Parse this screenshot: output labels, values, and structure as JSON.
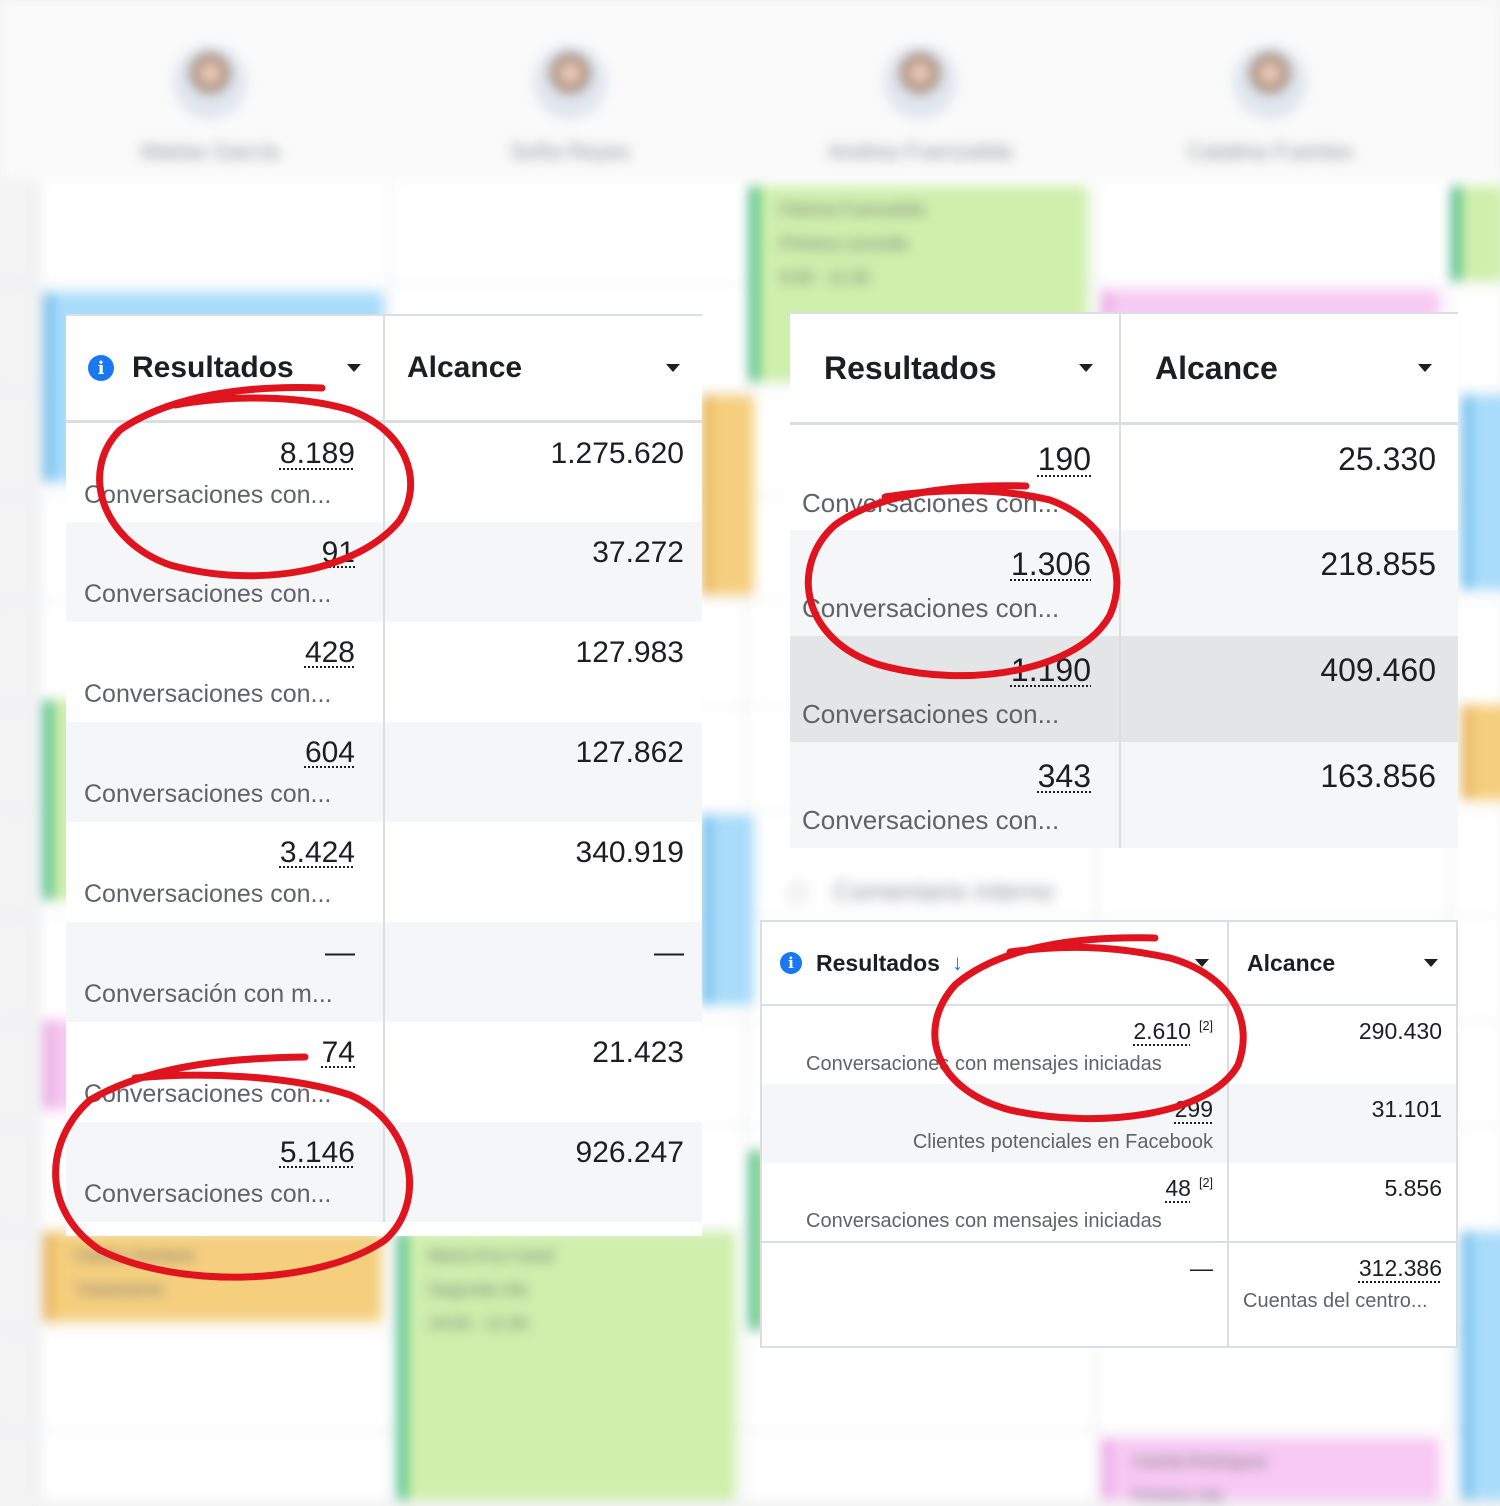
{
  "calendar": {
    "doctors": [
      {
        "name": "Matías García"
      },
      {
        "name": "Sofía Reyes"
      },
      {
        "name": "Andrea Fuenzalida"
      },
      {
        "name": "Catalina Fuentes"
      }
    ],
    "events": [
      {
        "line1": "Patricia Fuenzalida",
        "line2": "Primera consulta",
        "line3": "9:00 - 11:30"
      },
      {
        "line1": "Fabián Santana",
        "line2": "Tratamiento"
      },
      {
        "line1": "María Eva Casal",
        "line2": "Segunda cita",
        "line3": "19:00 - 21:00"
      },
      {
        "line1": "Camila Rodríguez",
        "line2": "Primera cita"
      }
    ],
    "comment_label": "Comentario interno"
  },
  "panel_a": {
    "headers": {
      "resultados": "Resultados",
      "alcance": "Alcance"
    },
    "rows": [
      {
        "value": "8.189",
        "label": "Conversaciones con...",
        "alcance": "1.275.620"
      },
      {
        "value": "91",
        "label": "Conversaciones con...",
        "alcance": "37.272"
      },
      {
        "value": "428",
        "label": "Conversaciones con...",
        "alcance": "127.983"
      },
      {
        "value": "604",
        "label": "Conversaciones con...",
        "alcance": "127.862"
      },
      {
        "value": "3.424",
        "label": "Conversaciones con...",
        "alcance": "340.919"
      },
      {
        "value": "—",
        "label": "Conversación con m...",
        "alcance": "—"
      },
      {
        "value": "74",
        "label": "Conversaciones con...",
        "alcance": "21.423"
      },
      {
        "value": "5.146",
        "label": "Conversaciones con...",
        "alcance": "926.247"
      }
    ]
  },
  "panel_b": {
    "headers": {
      "resultados": "Resultados",
      "alcance": "Alcance"
    },
    "rows": [
      {
        "value": "190",
        "label": "Conversaciones con...",
        "alcance": "25.330"
      },
      {
        "value": "1.306",
        "label": "Conversaciones con...",
        "alcance": "218.855"
      },
      {
        "value": "1.190",
        "label": "Conversaciones con...",
        "alcance": "409.460"
      },
      {
        "value": "343",
        "label": "Conversaciones con...",
        "alcance": "163.856"
      }
    ]
  },
  "panel_c": {
    "headers": {
      "resultados": "Resultados",
      "alcance": "Alcance"
    },
    "sort_icon": "arrow-down",
    "rows": [
      {
        "value": "2.610",
        "sup": "[2]",
        "label": "Conversaciones con mensajes iniciadas",
        "alcance": "290.430"
      },
      {
        "value": "299",
        "sup": "",
        "label": "Clientes potenciales en Facebook",
        "alcance": "31.101"
      },
      {
        "value": "48",
        "sup": "[2]",
        "label": "Conversaciones con mensajes iniciadas",
        "alcance": "5.856"
      },
      {
        "value": "—",
        "sup": "",
        "label": "",
        "alcance": "312.386",
        "alcance_label": "Cuentas del centro..."
      }
    ]
  },
  "colors": {
    "annotation": "#e0141e",
    "accent": "#1877f2"
  }
}
